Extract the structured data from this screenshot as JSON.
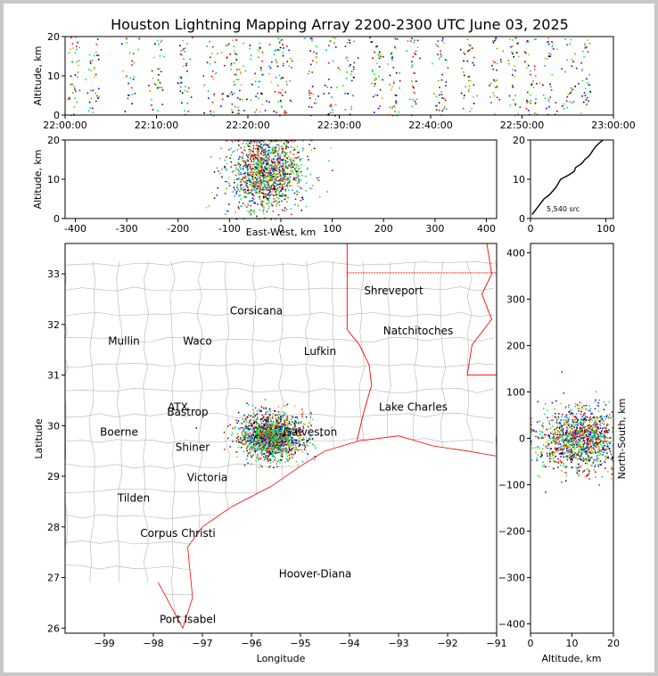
{
  "title": "Houston Lightning Mapping Array 2200-2300 UTC June 03, 2025",
  "colors": {
    "sources": [
      "#0000ff",
      "#00a0ff",
      "#00d080",
      "#00ff00",
      "#8c8c00",
      "#ff9900",
      "#ff0000",
      "#800000",
      "#000000"
    ],
    "state_border": "#ff0000",
    "county_border": "#b4b4b4",
    "coast": "#ff0000",
    "highlight_orange": "#ff8c3c",
    "highlight_green": "#30c830",
    "highlight_blue": "#0000ff",
    "highlight_gold": "#e0a000"
  },
  "chart_data": [
    {
      "type": "scatter",
      "name": "time-altitude",
      "ylabel": "Altitude, km",
      "xlim": [
        "22:00:00",
        "23:00:00"
      ],
      "ylim": [
        0,
        20
      ],
      "xticks": [
        "22:00:00",
        "22:10:00",
        "22:20:00",
        "22:30:00",
        "22:40:00",
        "22:50:00",
        "23:00:00"
      ],
      "yticks": [
        "0",
        "10",
        "20"
      ],
      "source_bursts_minutes": [
        1,
        3,
        7,
        10,
        13,
        16,
        18,
        19,
        21,
        23,
        24,
        27,
        29,
        31,
        34,
        36,
        38,
        41,
        44,
        47,
        49,
        51,
        53,
        55,
        57
      ],
      "altitude_range_km": [
        0,
        20
      ]
    },
    {
      "type": "scatter",
      "name": "east-west-altitude",
      "xlabel": "East-West, km",
      "ylabel": "Altitude, km",
      "xlim": [
        -420,
        420
      ],
      "ylim": [
        0,
        20
      ],
      "xticks": [
        "-400",
        "-300",
        "-200",
        "-100",
        "0",
        "100",
        "200",
        "300",
        "400"
      ],
      "yticks": [
        "0",
        "10",
        "20"
      ],
      "cluster_center_km": -30,
      "cluster_spread_km": 45
    },
    {
      "type": "line",
      "name": "altitude-histogram",
      "xlim": [
        0,
        110
      ],
      "ylim": [
        0,
        20
      ],
      "xticks": [
        "0",
        "100"
      ],
      "yticks": [
        "0",
        "10",
        "20"
      ],
      "annotation": "5,540 src",
      "counts_by_altitude": [
        [
          2,
          1
        ],
        [
          6,
          2
        ],
        [
          10,
          3
        ],
        [
          14,
          4
        ],
        [
          18,
          5
        ],
        [
          25,
          6
        ],
        [
          34,
          8
        ],
        [
          40,
          10
        ],
        [
          50,
          11
        ],
        [
          58,
          12
        ],
        [
          60,
          13
        ],
        [
          68,
          14
        ],
        [
          72,
          15
        ],
        [
          78,
          16
        ],
        [
          85,
          18
        ],
        [
          90,
          19
        ],
        [
          96,
          20
        ]
      ]
    },
    {
      "type": "scatter",
      "name": "plan-view-map",
      "xlabel": "Longitude",
      "ylabel": "Latitude",
      "xlim": [
        -99.8,
        -91
      ],
      "ylim": [
        25.9,
        33.6
      ],
      "xticks": [
        "−99",
        "−98",
        "−97",
        "−96",
        "−95",
        "−94",
        "−93",
        "−92",
        "−91"
      ],
      "yticks": [
        "26",
        "27",
        "28",
        "29",
        "30",
        "31",
        "32",
        "33"
      ],
      "cluster_center": [
        -95.6,
        29.8
      ],
      "cities": [
        {
          "name": "Shreveport",
          "lon": -93.1,
          "lat": 32.6,
          "color": "#000000"
        },
        {
          "name": "Corsicana",
          "lon": -95.9,
          "lat": 32.2,
          "color": "#000000"
        },
        {
          "name": "Natchitoches",
          "lon": -92.6,
          "lat": 31.8,
          "color": "#000000"
        },
        {
          "name": "Mullin",
          "lon": -98.6,
          "lat": 31.6,
          "color": "#ff8c3c"
        },
        {
          "name": "Waco",
          "lon": -97.1,
          "lat": 31.6,
          "color": "#000000"
        },
        {
          "name": "Lufkin",
          "lon": -94.6,
          "lat": 31.4,
          "color": "#000000"
        },
        {
          "name": "Lake Charles",
          "lon": -92.7,
          "lat": 30.3,
          "color": "#000000"
        },
        {
          "name": "Boerne",
          "lon": -98.7,
          "lat": 29.8,
          "color": "#000000"
        },
        {
          "name": "ATX",
          "lon": -97.5,
          "lat": 30.3,
          "color": "#ff8c3c"
        },
        {
          "name": "Bastrop",
          "lon": -97.3,
          "lat": 30.2,
          "color": "#000000"
        },
        {
          "name": "Shiner",
          "lon": -97.2,
          "lat": 29.5,
          "color": "#000000"
        },
        {
          "name": "Victoria",
          "lon": -96.9,
          "lat": 28.9,
          "color": "#000000"
        },
        {
          "name": "Tilden",
          "lon": -98.4,
          "lat": 28.5,
          "color": "#000000"
        },
        {
          "name": "Corpus Christi",
          "lon": -97.5,
          "lat": 27.8,
          "color": "#000000"
        },
        {
          "name": "Port Isabel",
          "lon": -97.3,
          "lat": 26.1,
          "color": "#000000"
        },
        {
          "name": "Hoover-Diana",
          "lon": -94.7,
          "lat": 27.0,
          "color": "#0000ff"
        },
        {
          "name": "Galveston",
          "lon": -94.8,
          "lat": 29.8,
          "color": "#e0a000"
        }
      ]
    },
    {
      "type": "scatter",
      "name": "altitude-north-south",
      "xlabel": "Altitude, km",
      "ylabel": "North-South, km",
      "xlim": [
        0,
        20
      ],
      "ylim": [
        -420,
        420
      ],
      "xticks": [
        "0",
        "10",
        "20"
      ],
      "yticks": [
        "−400",
        "−300",
        "−200",
        "−100",
        "0",
        "100",
        "200",
        "300",
        "400"
      ],
      "cluster_center_km": 0,
      "cluster_spread_km": 45
    }
  ]
}
